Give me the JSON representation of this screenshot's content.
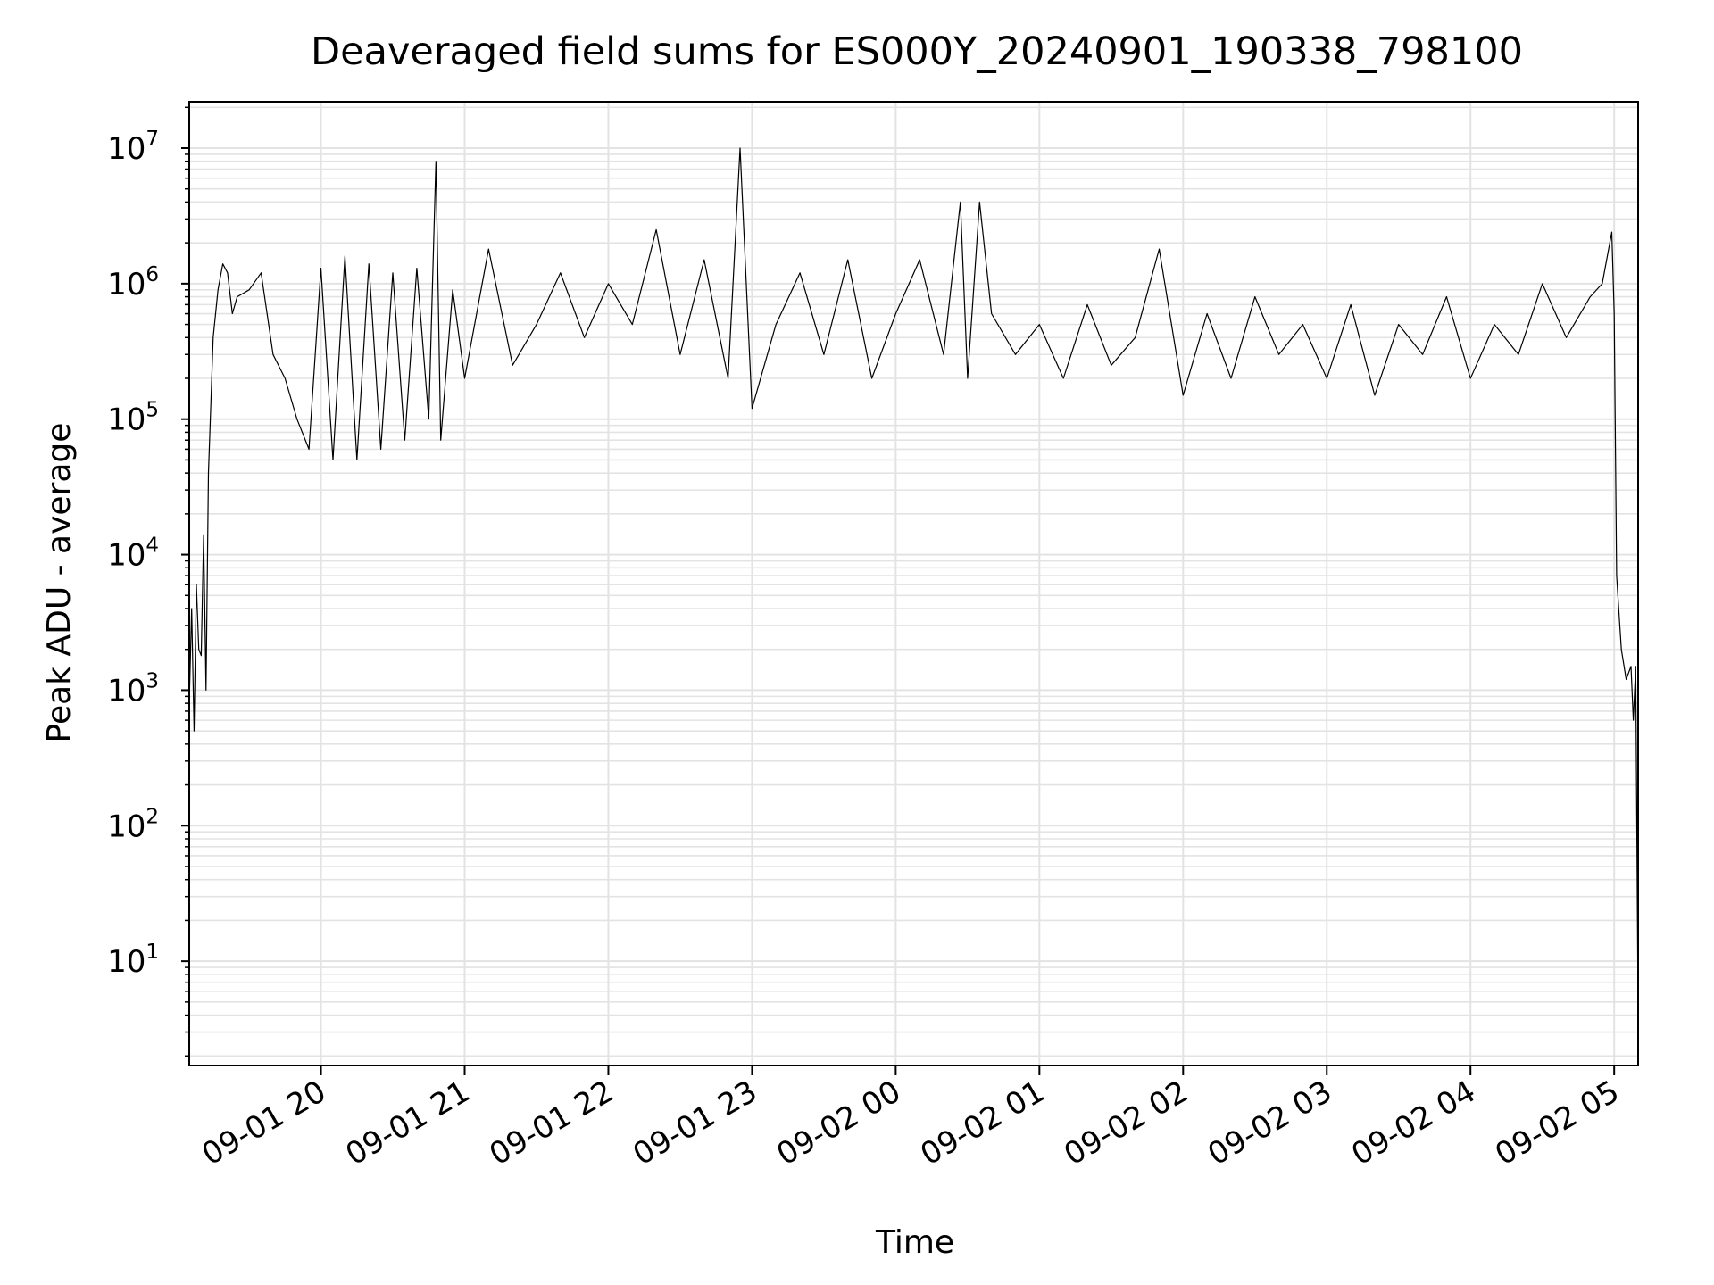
{
  "chart_data": {
    "type": "line",
    "title": "Deaveraged field sums for ES000Y_20240901_190338_798100",
    "xlabel": "Time",
    "ylabel": "Peak ADU - average",
    "y_scale": "log",
    "ylim": [
      1.7,
      22000000
    ],
    "xlim": [
      "2024-09-01 19:05",
      "2024-09-02 05:10"
    ],
    "grid": true,
    "x_tick_labels": [
      "09-01 20",
      "09-01 21",
      "09-01 22",
      "09-01 23",
      "09-02 00",
      "09-02 01",
      "09-02 02",
      "09-02 03",
      "09-02 04",
      "09-02 05"
    ],
    "y_ticks": [
      {
        "base": "10",
        "exp": "1"
      },
      {
        "base": "10",
        "exp": "2"
      },
      {
        "base": "10",
        "exp": "3"
      },
      {
        "base": "10",
        "exp": "4"
      },
      {
        "base": "10",
        "exp": "5"
      },
      {
        "base": "10",
        "exp": "6"
      },
      {
        "base": "10",
        "exp": "7"
      }
    ],
    "series": [
      {
        "color": "#000000",
        "x": [
          "2024-09-01 19:05",
          "2024-09-01 19:06",
          "2024-09-01 19:07",
          "2024-09-01 19:08",
          "2024-09-01 19:09",
          "2024-09-01 19:10",
          "2024-09-01 19:11",
          "2024-09-01 19:12",
          "2024-09-01 19:13",
          "2024-09-01 19:15",
          "2024-09-01 19:17",
          "2024-09-01 19:19",
          "2024-09-01 19:21",
          "2024-09-01 19:23",
          "2024-09-01 19:25",
          "2024-09-01 19:30",
          "2024-09-01 19:35",
          "2024-09-01 19:40",
          "2024-09-01 19:45",
          "2024-09-01 19:50",
          "2024-09-01 19:55",
          "2024-09-01 20:00",
          "2024-09-01 20:05",
          "2024-09-01 20:10",
          "2024-09-01 20:15",
          "2024-09-01 20:20",
          "2024-09-01 20:25",
          "2024-09-01 20:30",
          "2024-09-01 20:35",
          "2024-09-01 20:40",
          "2024-09-01 20:45",
          "2024-09-01 20:48",
          "2024-09-01 20:50",
          "2024-09-01 20:55",
          "2024-09-01 21:00",
          "2024-09-01 21:10",
          "2024-09-01 21:20",
          "2024-09-01 21:30",
          "2024-09-01 21:40",
          "2024-09-01 21:50",
          "2024-09-01 22:00",
          "2024-09-01 22:10",
          "2024-09-01 22:20",
          "2024-09-01 22:30",
          "2024-09-01 22:40",
          "2024-09-01 22:50",
          "2024-09-01 22:55",
          "2024-09-01 23:00",
          "2024-09-01 23:10",
          "2024-09-01 23:20",
          "2024-09-01 23:30",
          "2024-09-01 23:40",
          "2024-09-01 23:50",
          "2024-09-02 00:00",
          "2024-09-02 00:10",
          "2024-09-02 00:20",
          "2024-09-02 00:27",
          "2024-09-02 00:30",
          "2024-09-02 00:35",
          "2024-09-02 00:40",
          "2024-09-02 00:50",
          "2024-09-02 01:00",
          "2024-09-02 01:10",
          "2024-09-02 01:20",
          "2024-09-02 01:30",
          "2024-09-02 01:40",
          "2024-09-02 01:50",
          "2024-09-02 02:00",
          "2024-09-02 02:10",
          "2024-09-02 02:20",
          "2024-09-02 02:30",
          "2024-09-02 02:40",
          "2024-09-02 02:50",
          "2024-09-02 03:00",
          "2024-09-02 03:10",
          "2024-09-02 03:20",
          "2024-09-02 03:30",
          "2024-09-02 03:40",
          "2024-09-02 03:50",
          "2024-09-02 04:00",
          "2024-09-02 04:10",
          "2024-09-02 04:20",
          "2024-09-02 04:30",
          "2024-09-02 04:40",
          "2024-09-02 04:50",
          "2024-09-02 04:55",
          "2024-09-02 04:59",
          "2024-09-02 05:00",
          "2024-09-02 05:01",
          "2024-09-02 05:03",
          "2024-09-02 05:05",
          "2024-09-02 05:07",
          "2024-09-02 05:08",
          "2024-09-02 05:09",
          "2024-09-02 05:10"
        ],
        "y": [
          800,
          4000,
          500,
          6000,
          2000,
          1800,
          14000,
          1000,
          40000,
          400000,
          900000,
          1400000,
          1200000,
          600000,
          800000,
          900000,
          1200000,
          300000,
          200000,
          100000,
          60000,
          1300000,
          50000,
          1600000,
          50000,
          1400000,
          60000,
          1200000,
          70000,
          1300000,
          100000,
          8000000,
          70000,
          900000,
          200000,
          1800000,
          250000,
          500000,
          1200000,
          400000,
          1000000,
          500000,
          2500000,
          300000,
          1500000,
          200000,
          10000000,
          120000,
          500000,
          1200000,
          300000,
          1500000,
          200000,
          600000,
          1500000,
          300000,
          4000000,
          200000,
          4000000,
          600000,
          300000,
          500000,
          200000,
          700000,
          250000,
          400000,
          1800000,
          150000,
          600000,
          200000,
          800000,
          300000,
          500000,
          200000,
          700000,
          150000,
          500000,
          300000,
          800000,
          200000,
          500000,
          300000,
          1000000,
          400000,
          800000,
          1000000,
          2400000,
          600000,
          7000,
          2000,
          1200,
          1500,
          600,
          1500,
          4
        ]
      }
    ]
  }
}
